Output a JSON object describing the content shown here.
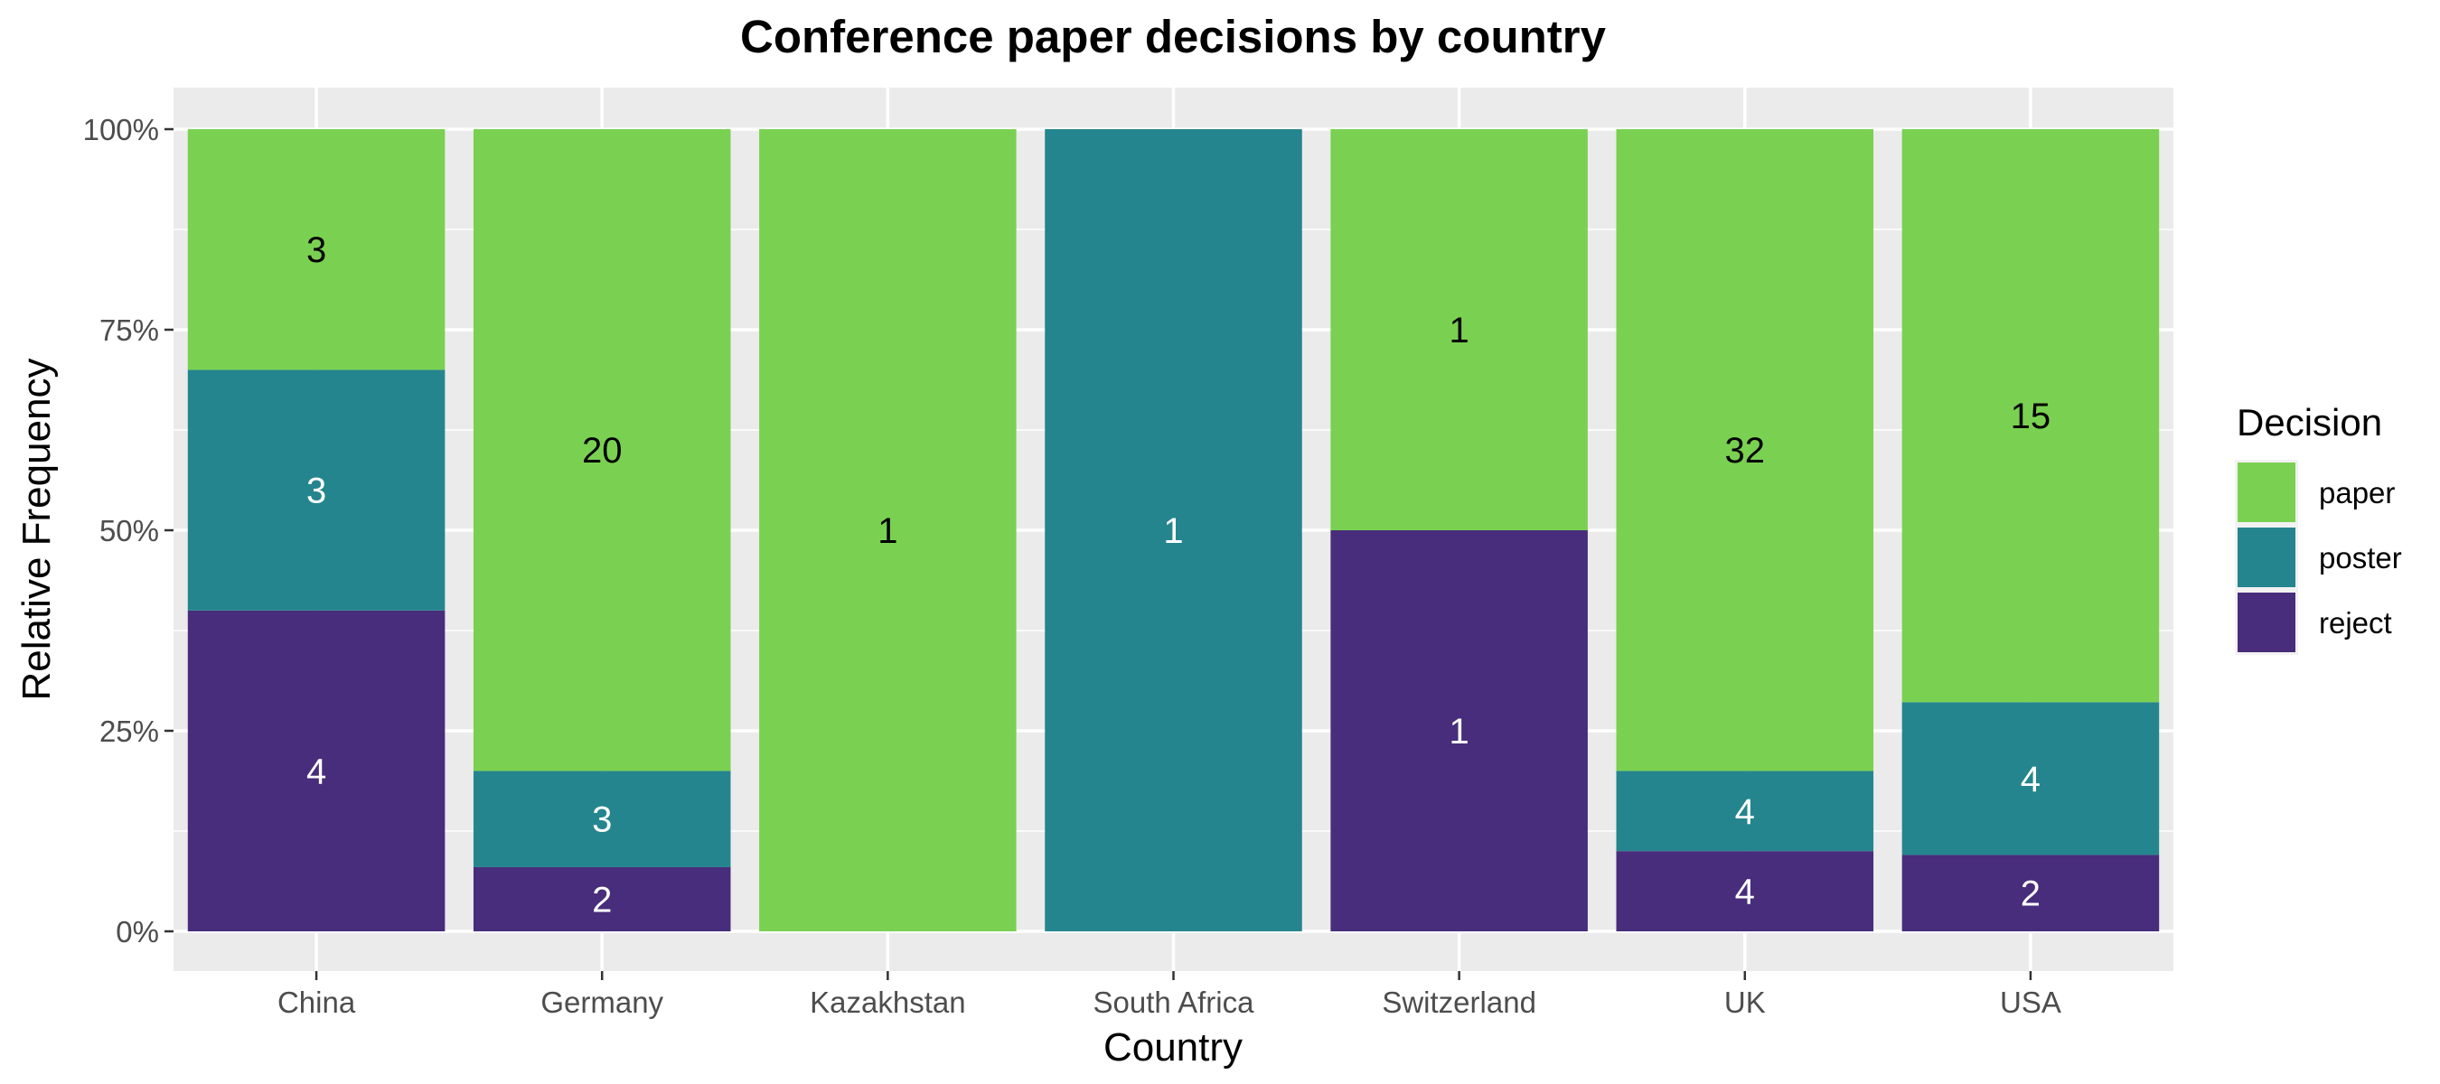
{
  "chart_data": {
    "type": "bar",
    "stacked": true,
    "normalized": true,
    "title": "Conference paper decisions by country",
    "xlabel": "Country",
    "ylabel": "Relative Frequency",
    "ylim": [
      0,
      1
    ],
    "y_ticks": [
      "0%",
      "25%",
      "50%",
      "75%",
      "100%"
    ],
    "categories": [
      "China",
      "Germany",
      "Kazakhstan",
      "South Africa",
      "Switzerland",
      "UK",
      "USA"
    ],
    "series": [
      {
        "name": "paper",
        "color": "#7ad151",
        "label_color": "#000000",
        "values": [
          3,
          20,
          1,
          0,
          1,
          32,
          15
        ]
      },
      {
        "name": "poster",
        "color": "#25858e",
        "label_color": "#ffffff",
        "values": [
          3,
          3,
          0,
          1,
          0,
          4,
          4
        ]
      },
      {
        "name": "reject",
        "color": "#472d7b",
        "label_color": "#ffffff",
        "values": [
          4,
          2,
          0,
          0,
          1,
          4,
          2
        ]
      }
    ],
    "legend": {
      "title": "Decision",
      "position": "right"
    },
    "grid": true,
    "panel_background": "#ebebeb"
  }
}
